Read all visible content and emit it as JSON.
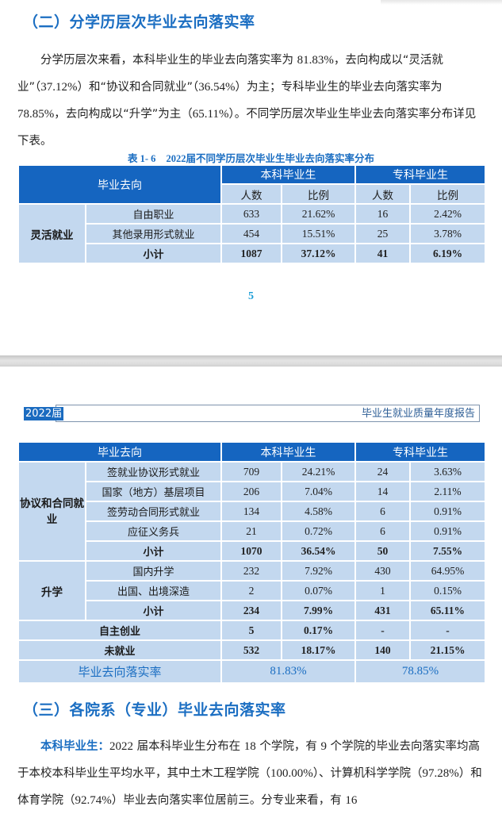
{
  "page1": {
    "section_title": "（二）分学历层次毕业去向落实率",
    "paragraph": [
      {
        "t": "分学历层次来看，本科毕业生的毕业去向落实率为 "
      },
      {
        "n": "81.83%"
      },
      {
        "t": "，去向构成以“灵活就业”（"
      },
      {
        "n": "37.12%"
      },
      {
        "t": "）和“协议和合同就业”（"
      },
      {
        "n": "36.54%"
      },
      {
        "t": "）为主；专科毕业生的毕业去向落实率为 "
      },
      {
        "n": "78.85%"
      },
      {
        "t": "，去向构成以“升学”为主（"
      },
      {
        "n": "65.11%"
      },
      {
        "t": "）。不同学历层次毕业生毕业去向落实率分布详见下表。"
      }
    ],
    "table_caption": {
      "label": "表 1- 6",
      "year": "2022",
      "title": "届不同学历层次毕业生毕业去向落实率分布"
    },
    "table": {
      "header": {
        "col1": "毕业去向",
        "undergrad": "本科毕业生",
        "junior": "专科毕业生",
        "count": "人数",
        "ratio": "比例"
      },
      "groups": [
        {
          "category": "灵活就业",
          "rows": [
            {
              "name": "自由职业",
              "u_count": "633",
              "u_ratio": "21.62%",
              "j_count": "16",
              "j_ratio": "2.42%"
            },
            {
              "name": "其他录用形式就业",
              "u_count": "454",
              "u_ratio": "15.51%",
              "j_count": "25",
              "j_ratio": "3.78%"
            },
            {
              "name": "小计",
              "u_count": "1087",
              "u_ratio": "37.12%",
              "j_count": "41",
              "j_ratio": "6.19%",
              "total": true
            }
          ]
        }
      ]
    },
    "page_number": "5"
  },
  "page2": {
    "running_header": {
      "year": "2022届",
      "title": "毕业生就业质量年度报告"
    },
    "table": {
      "header": {
        "col1": "毕业去向",
        "undergrad": "本科毕业生",
        "junior": "专科毕业生"
      },
      "groups": [
        {
          "category": "协议和合同就业",
          "rows": [
            {
              "name": "签就业协议形式就业",
              "u_count": "709",
              "u_ratio": "24.21%",
              "j_count": "24",
              "j_ratio": "3.63%"
            },
            {
              "name": "国家（地方）基层项目",
              "u_count": "206",
              "u_ratio": "7.04%",
              "j_count": "14",
              "j_ratio": "2.11%"
            },
            {
              "name": "签劳动合同形式就业",
              "u_count": "134",
              "u_ratio": "4.58%",
              "j_count": "6",
              "j_ratio": "0.91%"
            },
            {
              "name": "应征义务兵",
              "u_count": "21",
              "u_ratio": "0.72%",
              "j_count": "6",
              "j_ratio": "0.91%"
            },
            {
              "name": "小计",
              "u_count": "1070",
              "u_ratio": "36.54%",
              "j_count": "50",
              "j_ratio": "7.55%",
              "total": true
            }
          ]
        },
        {
          "category": "升学",
          "rows": [
            {
              "name": "国内升学",
              "u_count": "232",
              "u_ratio": "7.92%",
              "j_count": "430",
              "j_ratio": "64.95%"
            },
            {
              "name": "出国、出境深造",
              "u_count": "2",
              "u_ratio": "0.07%",
              "j_count": "1",
              "j_ratio": "0.15%"
            },
            {
              "name": "小计",
              "u_count": "234",
              "u_ratio": "7.99%",
              "j_count": "431",
              "j_ratio": "65.11%",
              "total": true
            }
          ]
        }
      ],
      "singles": [
        {
          "name": "自主创业",
          "u_count": "5",
          "u_ratio": "0.17%",
          "j_count": "-",
          "j_ratio": "-"
        },
        {
          "name": "未就业",
          "u_count": "532",
          "u_ratio": "18.17%",
          "j_count": "140",
          "j_ratio": "21.15%"
        }
      ],
      "rate_row": {
        "label": "毕业去向落实率",
        "undergrad": "81.83%",
        "junior": "78.85%"
      }
    },
    "section_title": "（三）各院系（专业）毕业去向落实率",
    "paragraph": [
      {
        "h": "本科毕业生："
      },
      {
        "n": "2022"
      },
      {
        "t": " 届本科毕业生分布在 "
      },
      {
        "n": "18"
      },
      {
        "t": " 个学院，有 "
      },
      {
        "n": "9"
      },
      {
        "t": " 个学院的毕业去向落实率均高于本校本科毕业生平均水平，其中土木工程学院（"
      },
      {
        "n": "100.00%"
      },
      {
        "t": "）、计算机科学学院（"
      },
      {
        "n": "97.28%"
      },
      {
        "t": "）和体育学院（"
      },
      {
        "n": "92.74%"
      },
      {
        "t": "）毕业去向落实率位居前三。分专业来看，有 "
      },
      {
        "n": "16"
      }
    ]
  },
  "colors": {
    "accent": "#1b6ec2",
    "table_header": "#1565c0",
    "table_cell": "#c3d8ef",
    "page_number": "#1e9fd8"
  }
}
